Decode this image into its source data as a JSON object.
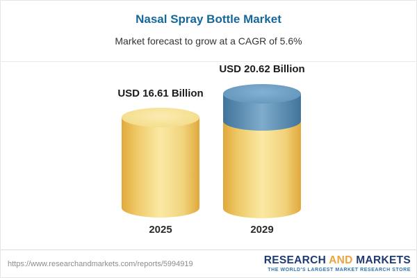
{
  "header": {
    "title": "Nasal Spray Bottle Market",
    "subtitle": "Market forecast to grow at a CAGR of 5.6%"
  },
  "chart_data": {
    "type": "bar",
    "title": "Nasal Spray Bottle Market",
    "subtitle": "Market forecast to grow at a CAGR of 5.6%",
    "categories": [
      "2025",
      "2029"
    ],
    "values": [
      16.61,
      20.62
    ],
    "value_labels": [
      "USD 16.61 Billion",
      "USD 20.62 Billion"
    ],
    "unit": "USD Billion",
    "cagr_percent": 5.6,
    "ylim": [
      0,
      22
    ],
    "legend": "none",
    "grid": false,
    "bar_style": "cylinder",
    "colors": {
      "base_segment": "#F0C75E",
      "growth_segment": "#5D8FB5"
    }
  },
  "footer": {
    "url": "https://www.researchandmarkets.com/reports/5994919",
    "logo": {
      "word_research": "RESEARCH",
      "word_and": "AND",
      "word_markets": "MARKETS",
      "tagline": "THE WORLD'S LARGEST MARKET RESEARCH STORE"
    }
  },
  "colors": {
    "title_blue": "#15679B",
    "cylinder_yellow": "#F0C75E",
    "cylinder_blue": "#5D8FB5",
    "logo_navy": "#1F3B73",
    "logo_gold": "#EDA33F"
  }
}
